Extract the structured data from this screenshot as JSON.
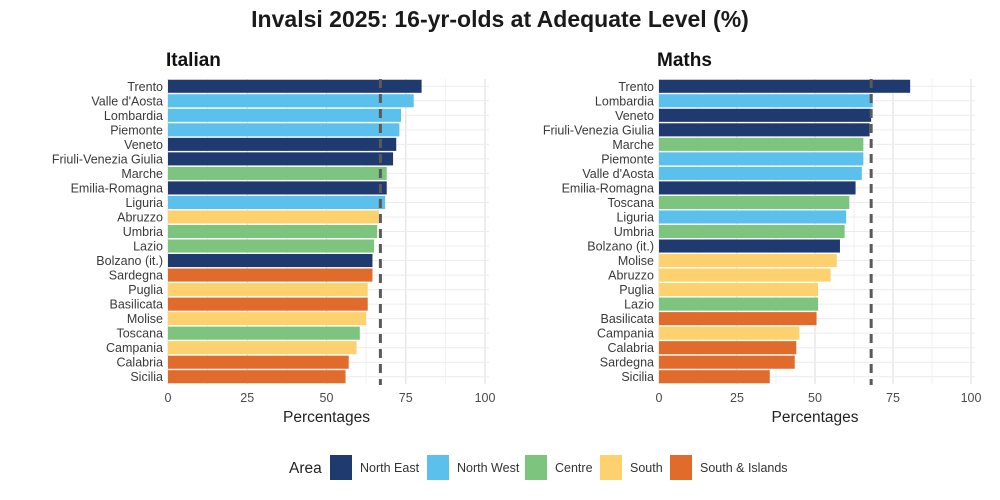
{
  "chart_data": {
    "type": "bar",
    "title": "Invalsi 2025: 16-yr-olds at Adequate Level (%)",
    "legend": {
      "title": "Area",
      "position": "bottom",
      "entries": [
        {
          "name": "North East",
          "color": "#1f3a6e"
        },
        {
          "name": "North West",
          "color": "#5bc0eb"
        },
        {
          "name": "Centre",
          "color": "#7dc47f"
        },
        {
          "name": "South",
          "color": "#fdd26e"
        },
        {
          "name": "South & Islands",
          "color": "#e06b2a"
        }
      ]
    },
    "panels": [
      {
        "title": "Italian",
        "orientation": "horizontal",
        "xlabel": "Percentages",
        "ylabel": "",
        "xlim": [
          0,
          100
        ],
        "xticks": [
          0,
          25,
          50,
          75,
          100
        ],
        "grid": true,
        "reference_line": {
          "value": 67,
          "style": "dashed"
        },
        "categories": [
          "Trento",
          "Valle d'Aosta",
          "Lombardia",
          "Piemonte",
          "Veneto",
          "Friuli-Venezia Giulia",
          "Marche",
          "Emilia-Romagna",
          "Liguria",
          "Abruzzo",
          "Umbria",
          "Lazio",
          "Bolzano (it.)",
          "Sardegna",
          "Puglia",
          "Basilicata",
          "Molise",
          "Toscana",
          "Campania",
          "Calabria",
          "Sicilia"
        ],
        "values": [
          80,
          77.5,
          73.5,
          73,
          72,
          71,
          69,
          69,
          68.5,
          66.5,
          66,
          65,
          64.5,
          64.5,
          63,
          63,
          62.5,
          60.5,
          59.5,
          57,
          56
        ],
        "areas": [
          "North East",
          "North West",
          "North West",
          "North West",
          "North East",
          "North East",
          "Centre",
          "North East",
          "North West",
          "South",
          "Centre",
          "Centre",
          "North East",
          "South & Islands",
          "South",
          "South & Islands",
          "South",
          "Centre",
          "South",
          "South & Islands",
          "South & Islands"
        ]
      },
      {
        "title": "Maths",
        "orientation": "horizontal",
        "xlabel": "Percentages",
        "ylabel": "",
        "xlim": [
          0,
          100
        ],
        "xticks": [
          0,
          25,
          50,
          75,
          100
        ],
        "grid": true,
        "reference_line": {
          "value": 68,
          "style": "dashed"
        },
        "categories": [
          "Trento",
          "Lombardia",
          "Veneto",
          "Friuli-Venezia Giulia",
          "Marche",
          "Piemonte",
          "Valle d'Aosta",
          "Emilia-Romagna",
          "Toscana",
          "Liguria",
          "Umbria",
          "Bolzano (it.)",
          "Molise",
          "Abruzzo",
          "Puglia",
          "Lazio",
          "Basilicata",
          "Campania",
          "Calabria",
          "Sardegna",
          "Sicilia"
        ],
        "values": [
          80.5,
          68.5,
          68,
          67.5,
          65.5,
          65.5,
          65,
          63,
          61,
          60,
          59.5,
          58,
          57,
          55,
          51,
          51,
          50.5,
          45,
          44,
          43.5,
          35.5
        ],
        "areas": [
          "North East",
          "North West",
          "North East",
          "North East",
          "Centre",
          "North West",
          "North West",
          "North East",
          "Centre",
          "North West",
          "Centre",
          "North East",
          "South",
          "South",
          "South",
          "Centre",
          "South & Islands",
          "South",
          "South & Islands",
          "South & Islands",
          "South & Islands"
        ]
      }
    ]
  }
}
